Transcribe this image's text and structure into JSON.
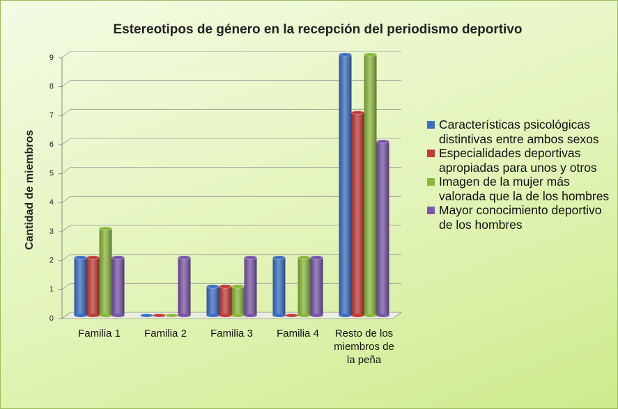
{
  "chart_data": {
    "type": "bar",
    "title": "Estereotipos de género en la recepción del periodismo deportivo",
    "y_label": "Cantidad de miembros",
    "categories": [
      "Familia 1",
      "Familia 2",
      "Familia 3",
      "Familia 4",
      "Resto de los miembros de la peña"
    ],
    "series": [
      {
        "name": "Características psicológicas distintivas entre ambos sexos",
        "color": "#3a6fc4",
        "values": [
          2,
          0,
          1,
          2,
          9
        ]
      },
      {
        "name": "Especialidades deportivas apropiadas para unos y otros",
        "color": "#c43a36",
        "values": [
          2,
          0,
          1,
          0,
          7
        ]
      },
      {
        "name": "Imagen de la mujer más valorada que la de los hombres",
        "color": "#8ab83a",
        "values": [
          3,
          0,
          1,
          2,
          9
        ]
      },
      {
        "name": "Mayor conocimiento deportivo de los hombres",
        "color": "#7a55a8",
        "values": [
          2,
          2,
          2,
          2,
          6
        ]
      }
    ],
    "ylim": [
      0,
      9
    ],
    "yticks": [
      0,
      1,
      2,
      3,
      4,
      5,
      6,
      7,
      8,
      9
    ],
    "grid": true,
    "legend": "right"
  }
}
